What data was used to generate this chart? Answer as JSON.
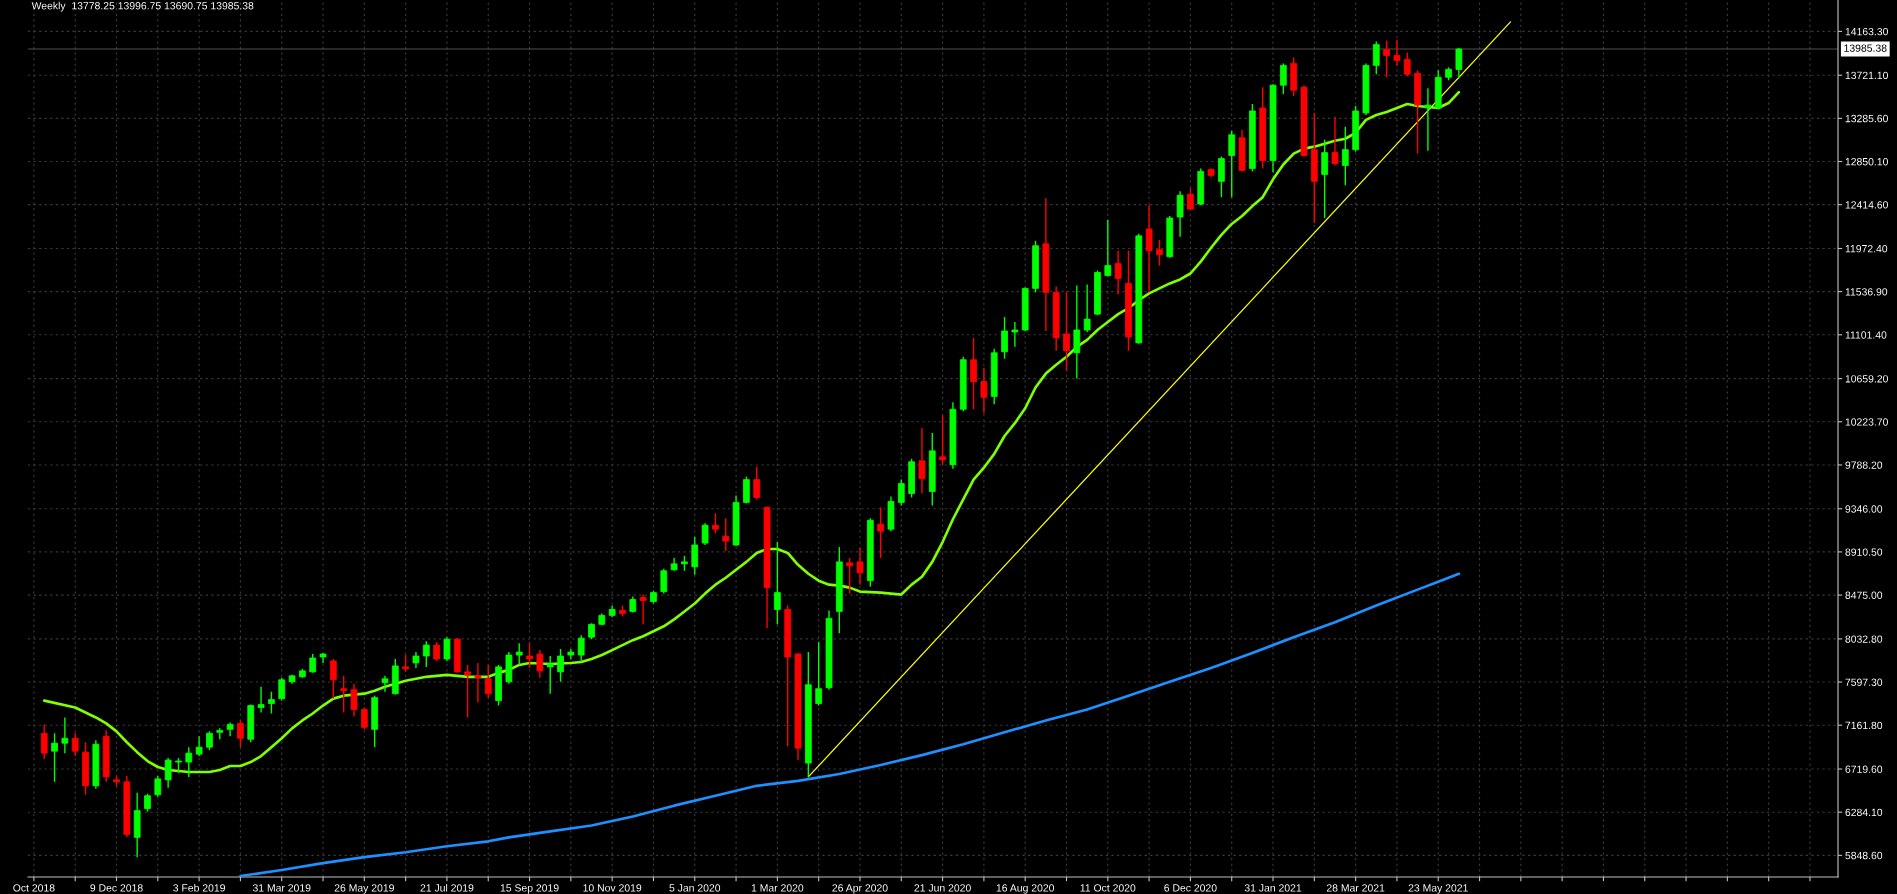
{
  "chart_data": {
    "type": "candlestick",
    "title": "Weekly  13778.25 13996.75 13690.75 13985.38",
    "x": [
      "2018-10-21",
      "2018-10-28",
      "2018-11-04",
      "2018-11-11",
      "2018-11-18",
      "2018-11-25",
      "2018-12-02",
      "2018-12-09",
      "2018-12-16",
      "2018-12-23",
      "2018-12-30",
      "2019-01-06",
      "2019-01-13",
      "2019-01-20",
      "2019-01-27",
      "2019-02-03",
      "2019-02-10",
      "2019-02-17",
      "2019-02-24",
      "2019-03-03",
      "2019-03-10",
      "2019-03-17",
      "2019-03-24",
      "2019-03-31",
      "2019-04-07",
      "2019-04-14",
      "2019-04-21",
      "2019-04-28",
      "2019-05-05",
      "2019-05-12",
      "2019-05-19",
      "2019-05-26",
      "2019-06-02",
      "2019-06-09",
      "2019-06-16",
      "2019-06-23",
      "2019-06-30",
      "2019-07-07",
      "2019-07-14",
      "2019-07-21",
      "2019-07-28",
      "2019-08-04",
      "2019-08-11",
      "2019-08-18",
      "2019-08-25",
      "2019-09-01",
      "2019-09-08",
      "2019-09-15",
      "2019-09-22",
      "2019-09-29",
      "2019-10-06",
      "2019-10-13",
      "2019-10-20",
      "2019-10-27",
      "2019-11-03",
      "2019-11-10",
      "2019-11-17",
      "2019-11-24",
      "2019-12-01",
      "2019-12-08",
      "2019-12-15",
      "2019-12-22",
      "2019-12-29",
      "2020-01-05",
      "2020-01-12",
      "2020-01-19",
      "2020-01-26",
      "2020-02-02",
      "2020-02-09",
      "2020-02-16",
      "2020-02-23",
      "2020-03-01",
      "2020-03-08",
      "2020-03-15",
      "2020-03-22",
      "2020-03-29",
      "2020-04-05",
      "2020-04-12",
      "2020-04-19",
      "2020-04-26",
      "2020-05-03",
      "2020-05-10",
      "2020-05-17",
      "2020-05-24",
      "2020-05-31",
      "2020-06-07",
      "2020-06-14",
      "2020-06-21",
      "2020-06-28",
      "2020-07-05",
      "2020-07-12",
      "2020-07-19",
      "2020-07-26",
      "2020-08-02",
      "2020-08-09",
      "2020-08-16",
      "2020-08-23",
      "2020-08-30",
      "2020-09-06",
      "2020-09-13",
      "2020-09-20",
      "2020-09-27",
      "2020-10-04",
      "2020-10-11",
      "2020-10-18",
      "2020-10-25",
      "2020-11-01",
      "2020-11-08",
      "2020-11-15",
      "2020-11-22",
      "2020-11-29",
      "2020-12-06",
      "2020-12-13",
      "2020-12-20",
      "2020-12-27",
      "2021-01-03",
      "2021-01-10",
      "2021-01-17",
      "2021-01-24",
      "2021-01-31",
      "2021-02-07",
      "2021-02-14",
      "2021-02-21",
      "2021-02-28",
      "2021-03-07",
      "2021-03-14",
      "2021-03-21",
      "2021-03-28",
      "2021-04-04",
      "2021-04-11",
      "2021-04-18",
      "2021-04-25",
      "2021-05-02",
      "2021-05-09",
      "2021-05-16",
      "2021-05-23",
      "2021-05-30",
      "2021-06-06"
    ],
    "ohlc": [
      [
        7080,
        7170,
        6820,
        6880
      ],
      [
        6900,
        7080,
        6590,
        6980
      ],
      [
        6980,
        7240,
        6880,
        7030
      ],
      [
        7030,
        7080,
        6850,
        6900
      ],
      [
        6890,
        6990,
        6460,
        6550
      ],
      [
        6550,
        7010,
        6520,
        6970
      ],
      [
        7050,
        7110,
        6590,
        6640
      ],
      [
        6610,
        6650,
        6550,
        6590
      ],
      [
        6590,
        6650,
        6030,
        6060
      ],
      [
        6030,
        6480,
        5830,
        6300
      ],
      [
        6320,
        6470,
        6290,
        6450
      ],
      [
        6460,
        6650,
        6440,
        6620
      ],
      [
        6610,
        6830,
        6530,
        6810
      ],
      [
        6790,
        6830,
        6680,
        6800
      ],
      [
        6790,
        6940,
        6640,
        6880
      ],
      [
        6870,
        7050,
        6850,
        6940
      ],
      [
        6940,
        7100,
        6910,
        7080
      ],
      [
        7090,
        7130,
        7020,
        7110
      ],
      [
        7120,
        7190,
        7050,
        7170
      ],
      [
        7180,
        7210,
        6940,
        7030
      ],
      [
        7020,
        7370,
        6990,
        7360
      ],
      [
        7340,
        7550,
        7290,
        7370
      ],
      [
        7380,
        7500,
        7280,
        7420
      ],
      [
        7430,
        7640,
        7410,
        7620
      ],
      [
        7600,
        7670,
        7580,
        7660
      ],
      [
        7650,
        7730,
        7640,
        7710
      ],
      [
        7700,
        7880,
        7690,
        7840
      ],
      [
        7850,
        7890,
        7790,
        7880
      ],
      [
        7810,
        7830,
        7430,
        7620
      ],
      [
        7530,
        7660,
        7290,
        7510
      ],
      [
        7520,
        7580,
        7250,
        7320
      ],
      [
        7320,
        7340,
        7120,
        7140
      ],
      [
        7120,
        7460,
        6940,
        7440
      ],
      [
        7590,
        7660,
        7500,
        7630
      ],
      [
        7480,
        7830,
        7470,
        7760
      ],
      [
        7750,
        7870,
        7700,
        7730
      ],
      [
        7790,
        7900,
        7740,
        7860
      ],
      [
        7860,
        8010,
        7750,
        7970
      ],
      [
        7970,
        8000,
        7810,
        7830
      ],
      [
        7830,
        8050,
        7810,
        8030
      ],
      [
        8030,
        8040,
        7690,
        7700
      ],
      [
        7700,
        7770,
        7240,
        7670
      ],
      [
        7660,
        7790,
        7390,
        7640
      ],
      [
        7630,
        7770,
        7440,
        7480
      ],
      [
        7410,
        7770,
        7360,
        7750
      ],
      [
        7600,
        7900,
        7580,
        7870
      ],
      [
        7870,
        7990,
        7770,
        7900
      ],
      [
        7860,
        7990,
        7740,
        7830
      ],
      [
        7880,
        7920,
        7640,
        7710
      ],
      [
        7750,
        7860,
        7480,
        7780
      ],
      [
        7700,
        7930,
        7600,
        7860
      ],
      [
        7870,
        7930,
        7830,
        7900
      ],
      [
        7870,
        8070,
        7800,
        8040
      ],
      [
        8050,
        8190,
        8030,
        8180
      ],
      [
        8180,
        8290,
        8170,
        8270
      ],
      [
        8270,
        8370,
        8250,
        8330
      ],
      [
        8320,
        8370,
        8260,
        8290
      ],
      [
        8310,
        8460,
        8300,
        8430
      ],
      [
        8450,
        8480,
        8180,
        8420
      ],
      [
        8410,
        8520,
        8390,
        8500
      ],
      [
        8510,
        8740,
        8490,
        8720
      ],
      [
        8730,
        8850,
        8720,
        8790
      ],
      [
        8790,
        8870,
        8720,
        8810
      ],
      [
        8760,
        9060,
        8680,
        8980
      ],
      [
        9000,
        9200,
        8980,
        9180
      ],
      [
        9180,
        9300,
        9100,
        9140
      ],
      [
        9070,
        9250,
        8920,
        9020
      ],
      [
        8980,
        9480,
        8970,
        9410
      ],
      [
        9410,
        9670,
        9400,
        9640
      ],
      [
        9640,
        9770,
        9440,
        9460
      ],
      [
        9360,
        9370,
        8140,
        8550
      ],
      [
        8330,
        9010,
        8180,
        8500
      ],
      [
        8330,
        8370,
        6950,
        7850
      ],
      [
        7880,
        7890,
        6810,
        6930
      ],
      [
        6780,
        7900,
        6640,
        7570
      ],
      [
        7380,
        8000,
        7360,
        7530
      ],
      [
        7540,
        8320,
        7520,
        8240
      ],
      [
        8310,
        8960,
        8090,
        8810
      ],
      [
        8800,
        8850,
        8490,
        8770
      ],
      [
        8810,
        8950,
        8580,
        8700
      ],
      [
        8620,
        9250,
        8560,
        9230
      ],
      [
        9190,
        9360,
        8850,
        9120
      ],
      [
        9140,
        9470,
        9120,
        9420
      ],
      [
        9410,
        9640,
        9380,
        9600
      ],
      [
        9500,
        9850,
        9460,
        9820
      ],
      [
        9830,
        10160,
        9500,
        9650
      ],
      [
        9520,
        10110,
        9380,
        9930
      ],
      [
        9870,
        10290,
        9790,
        9840
      ],
      [
        9790,
        10420,
        9750,
        10350
      ],
      [
        10350,
        10880,
        10330,
        10850
      ],
      [
        10850,
        11070,
        10350,
        10630
      ],
      [
        10630,
        10770,
        10310,
        10470
      ],
      [
        10480,
        10960,
        10400,
        10920
      ],
      [
        10930,
        11280,
        10860,
        11140
      ],
      [
        11130,
        11230,
        10980,
        11150
      ],
      [
        11150,
        11580,
        11140,
        11570
      ],
      [
        11570,
        12050,
        11530,
        12000
      ],
      [
        12020,
        12480,
        11140,
        11530
      ],
      [
        11530,
        11590,
        10940,
        11070
      ],
      [
        11110,
        11530,
        10740,
        10940
      ],
      [
        10920,
        11600,
        10660,
        11150
      ],
      [
        11150,
        11610,
        11130,
        11260
      ],
      [
        11310,
        11750,
        11300,
        11730
      ],
      [
        11700,
        12260,
        11690,
        11800
      ],
      [
        11820,
        11950,
        11510,
        11670
      ],
      [
        11620,
        11950,
        10940,
        11080
      ],
      [
        11020,
        12120,
        11010,
        12100
      ],
      [
        12170,
        12410,
        11530,
        11950
      ],
      [
        11960,
        12060,
        11800,
        11910
      ],
      [
        11890,
        12300,
        11880,
        12280
      ],
      [
        12290,
        12550,
        12090,
        12510
      ],
      [
        12520,
        12580,
        12360,
        12370
      ],
      [
        12420,
        12780,
        12410,
        12750
      ],
      [
        12770,
        12780,
        12690,
        12710
      ],
      [
        12650,
        12900,
        12490,
        12880
      ],
      [
        12910,
        13160,
        12490,
        13120
      ],
      [
        13090,
        13170,
        12750,
        12760
      ],
      [
        12780,
        13430,
        12750,
        13360
      ],
      [
        13390,
        13600,
        12780,
        12860
      ],
      [
        12860,
        13630,
        12740,
        13620
      ],
      [
        13620,
        13840,
        13530,
        13820
      ],
      [
        13840,
        13900,
        13510,
        13570
      ],
      [
        13600,
        13620,
        12900,
        12910
      ],
      [
        12970,
        13340,
        12230,
        12650
      ],
      [
        12720,
        13070,
        12280,
        12940
      ],
      [
        12940,
        13300,
        12810,
        12830
      ],
      [
        12810,
        13200,
        12610,
        12970
      ],
      [
        12970,
        13410,
        12950,
        13360
      ],
      [
        13340,
        13840,
        13320,
        13820
      ],
      [
        13820,
        14060,
        13730,
        14030
      ],
      [
        13980,
        14070,
        13700,
        13920
      ],
      [
        13920,
        14080,
        13820,
        13870
      ],
      [
        13880,
        13950,
        13710,
        13730
      ],
      [
        13740,
        13770,
        12930,
        13420
      ],
      [
        13390,
        13590,
        12960,
        13420
      ],
      [
        13390,
        13770,
        13380,
        13700
      ],
      [
        13700,
        13800,
        13670,
        13780
      ],
      [
        13778.25,
        13996.75,
        13690.75,
        13985.38
      ]
    ],
    "colors": [
      "#ff0000",
      "#00ff00",
      "#00ff00",
      "#ff0000",
      "#ff0000",
      "#00ff00",
      "#ff0000",
      "#ff0000",
      "#ff0000",
      "#00ff00",
      "#00ff00",
      "#00ff00",
      "#00ff00",
      "#00ff00",
      "#00ff00",
      "#00ff00",
      "#00ff00",
      "#00ff00",
      "#00ff00",
      "#ff0000",
      "#00ff00",
      "#00ff00",
      "#00ff00",
      "#00ff00",
      "#00ff00",
      "#00ff00",
      "#00ff00",
      "#00ff00",
      "#ff0000",
      "#ff0000",
      "#ff0000",
      "#ff0000",
      "#00ff00",
      "#00ff00",
      "#00ff00",
      "#ff0000",
      "#00ff00",
      "#00ff00",
      "#ff0000",
      "#00ff00",
      "#ff0000",
      "#ff0000",
      "#ff0000",
      "#ff0000",
      "#00ff00",
      "#00ff00",
      "#00ff00",
      "#ff0000",
      "#ff0000",
      "#00ff00",
      "#00ff00",
      "#00ff00",
      "#00ff00",
      "#00ff00",
      "#00ff00",
      "#00ff00",
      "#ff0000",
      "#00ff00",
      "#ff0000",
      "#00ff00",
      "#00ff00",
      "#00ff00",
      "#00ff00",
      "#00ff00",
      "#00ff00",
      "#ff0000",
      "#ff0000",
      "#00ff00",
      "#00ff00",
      "#ff0000",
      "#ff0000",
      "#00ff00",
      "#ff0000",
      "#ff0000",
      "#00ff00",
      "#00ff00",
      "#00ff00",
      "#00ff00",
      "#ff0000",
      "#ff0000",
      "#00ff00",
      "#ff0000",
      "#00ff00",
      "#00ff00",
      "#00ff00",
      "#ff0000",
      "#00ff00",
      "#ff0000",
      "#00ff00",
      "#00ff00",
      "#ff0000",
      "#ff0000",
      "#00ff00",
      "#00ff00",
      "#00ff00",
      "#00ff00",
      "#00ff00",
      "#ff0000",
      "#ff0000",
      "#ff0000",
      "#00ff00",
      "#00ff00",
      "#00ff00",
      "#00ff00",
      "#ff0000",
      "#ff0000",
      "#00ff00",
      "#ff0000",
      "#ff0000",
      "#00ff00",
      "#00ff00",
      "#ff0000",
      "#00ff00",
      "#ff0000",
      "#00ff00",
      "#00ff00",
      "#ff0000",
      "#00ff00",
      "#ff0000",
      "#00ff00",
      "#00ff00",
      "#ff0000",
      "#ff0000",
      "#ff0000",
      "#00ff00",
      "#ff0000",
      "#00ff00",
      "#00ff00",
      "#00ff00",
      "#00ff00",
      "#ff0000",
      "#ff0000",
      "#ff0000",
      "#ff0000",
      "#00ff00",
      "#00ff00",
      "#00ff00",
      "#00ff00"
    ],
    "series": [
      {
        "type": "line",
        "color": "#7fff00",
        "x": [
          "2018-10-21",
          "2018-11-11",
          "2018-11-25",
          "2018-12-02",
          "2018-12-09",
          "2018-12-16",
          "2018-12-23",
          "2018-12-30",
          "2019-01-06",
          "2019-01-13",
          "2019-01-27",
          "2019-02-10",
          "2019-02-17",
          "2019-02-24",
          "2019-03-03",
          "2019-03-10",
          "2019-03-17",
          "2019-03-24",
          "2019-03-31",
          "2019-04-07",
          "2019-04-14",
          "2019-04-21",
          "2019-04-28",
          "2019-05-05",
          "2019-05-12",
          "2019-05-19",
          "2019-05-26",
          "2019-06-02",
          "2019-06-09",
          "2019-06-16",
          "2019-06-23",
          "2019-06-30",
          "2019-07-07",
          "2019-07-14",
          "2019-07-21",
          "2019-07-28",
          "2019-08-04",
          "2019-08-11",
          "2019-08-18",
          "2019-08-25",
          "2019-09-01",
          "2019-09-08",
          "2019-09-15",
          "2019-09-29",
          "2019-10-13",
          "2019-10-20",
          "2019-10-27",
          "2019-11-03",
          "2019-11-10",
          "2019-11-17",
          "2019-11-24",
          "2019-12-01",
          "2019-12-08",
          "2019-12-15",
          "2019-12-22",
          "2019-12-29",
          "2020-01-05",
          "2020-01-12",
          "2020-01-19",
          "2020-01-26",
          "2020-02-02",
          "2020-02-09",
          "2020-02-16",
          "2020-02-23",
          "2020-03-01",
          "2020-03-08",
          "2020-03-15",
          "2020-03-22",
          "2020-03-29",
          "2020-04-05",
          "2020-04-12",
          "2020-04-19",
          "2020-04-26",
          "2020-05-10",
          "2020-05-24",
          "2020-05-31",
          "2020-06-07",
          "2020-06-14",
          "2020-06-21",
          "2020-06-28",
          "2020-07-05",
          "2020-07-12",
          "2020-07-19",
          "2020-07-26",
          "2020-08-02",
          "2020-08-09",
          "2020-08-16",
          "2020-08-23",
          "2020-08-30",
          "2020-09-06",
          "2020-09-13",
          "2020-09-20",
          "2020-09-27",
          "2020-10-04",
          "2020-10-11",
          "2020-10-18",
          "2020-10-25",
          "2020-11-01",
          "2020-11-08",
          "2020-11-15",
          "2020-11-22",
          "2020-11-29",
          "2020-12-06",
          "2020-12-13",
          "2020-12-20",
          "2020-12-27",
          "2021-01-03",
          "2021-01-10",
          "2021-01-17",
          "2021-01-24",
          "2021-01-31",
          "2021-02-07",
          "2021-02-14",
          "2021-02-21",
          "2021-02-28",
          "2021-03-07",
          "2021-03-14",
          "2021-03-21",
          "2021-03-28",
          "2021-04-04",
          "2021-04-11",
          "2021-04-18",
          "2021-04-25",
          "2021-05-02",
          "2021-05-09",
          "2021-05-16",
          "2021-05-23",
          "2021-05-30",
          "2021-06-06"
        ],
        "values": [
          7410,
          7340,
          7240,
          7180,
          7100,
          6990,
          6890,
          6800,
          6740,
          6710,
          6690,
          6690,
          6710,
          6750,
          6750,
          6790,
          6850,
          6940,
          7030,
          7130,
          7210,
          7280,
          7360,
          7430,
          7460,
          7470,
          7480,
          7510,
          7550,
          7580,
          7610,
          7630,
          7650,
          7660,
          7670,
          7660,
          7650,
          7650,
          7650,
          7690,
          7720,
          7770,
          7790,
          7780,
          7790,
          7800,
          7830,
          7870,
          7920,
          7970,
          8020,
          8060,
          8110,
          8160,
          8230,
          8310,
          8390,
          8490,
          8580,
          8650,
          8730,
          8810,
          8900,
          8940,
          8940,
          8900,
          8780,
          8690,
          8620,
          8580,
          8570,
          8550,
          8510,
          8500,
          8480,
          8580,
          8660,
          8810,
          9010,
          9240,
          9440,
          9640,
          9760,
          9900,
          10080,
          10210,
          10360,
          10570,
          10710,
          10800,
          10880,
          10980,
          11050,
          11150,
          11230,
          11310,
          11370,
          11450,
          11520,
          11570,
          11620,
          11660,
          11720,
          11840,
          11980,
          12110,
          12220,
          12300,
          12400,
          12490,
          12670,
          12820,
          12930,
          12980,
          13000,
          13030,
          13060,
          13080,
          13140,
          13270,
          13320,
          13350,
          13390,
          13430,
          13410,
          13400,
          13390,
          13440,
          13550
        ]
      },
      {
        "type": "line",
        "color": "#1e90ff",
        "x": [
          "2019-03-03",
          "2019-03-31",
          "2019-04-28",
          "2019-05-26",
          "2019-06-23",
          "2019-07-21",
          "2019-08-18",
          "2019-09-01",
          "2019-09-29",
          "2019-10-27",
          "2019-11-24",
          "2019-12-22",
          "2020-01-19",
          "2020-02-16",
          "2020-03-15",
          "2020-04-12",
          "2020-05-10",
          "2020-06-07",
          "2020-07-05",
          "2020-08-02",
          "2020-08-30",
          "2020-09-27",
          "2020-10-25",
          "2020-11-22",
          "2020-12-20",
          "2021-01-17",
          "2021-02-14",
          "2021-03-14",
          "2021-04-11",
          "2021-05-09",
          "2021-05-23",
          "2021-06-06"
        ],
        "values": [
          5640,
          5700,
          5770,
          5830,
          5880,
          5940,
          5990,
          6030,
          6090,
          6150,
          6240,
          6350,
          6450,
          6550,
          6600,
          6670,
          6760,
          6860,
          6970,
          7090,
          7210,
          7320,
          7460,
          7600,
          7740,
          7890,
          8050,
          8200,
          8370,
          8530,
          8610,
          8690
        ]
      },
      {
        "type": "line",
        "color": "#ffff00",
        "x": [
          "2020-03-22",
          "2021-07-11"
        ],
        "values": [
          6640,
          14260
        ]
      }
    ],
    "ref_lines": [
      {
        "axis": "y",
        "value": 13985.38,
        "label": "13985.38",
        "color": "#505050"
      }
    ],
    "ylim": [
      5630,
      14480
    ],
    "yticks": [
      {
        "value": 14163.3,
        "label": "14163.30"
      },
      {
        "value": 13721.1,
        "label": "13721.10"
      },
      {
        "value": 13285.6,
        "label": "13285.60"
      },
      {
        "value": 12850.1,
        "label": "12850.10"
      },
      {
        "value": 12414.6,
        "label": "12414.60"
      },
      {
        "value": 11972.4,
        "label": "11972.40"
      },
      {
        "value": 11536.9,
        "label": "11536.90"
      },
      {
        "value": 11101.4,
        "label": "11101.40"
      },
      {
        "value": 10659.2,
        "label": "10659.20"
      },
      {
        "value": 10223.7,
        "label": "10223.70"
      },
      {
        "value": 9788.2,
        "label": "9788.20"
      },
      {
        "value": 9346.0,
        "label": "9346.00"
      },
      {
        "value": 8910.5,
        "label": "8910.50"
      },
      {
        "value": 8475.0,
        "label": "8475.00"
      },
      {
        "value": 8032.8,
        "label": "8032.80"
      },
      {
        "value": 7597.3,
        "label": "7597.30"
      },
      {
        "value": 7161.8,
        "label": "7161.80"
      },
      {
        "value": 6719.6,
        "label": "6719.60"
      },
      {
        "value": 6284.1,
        "label": "6284.10"
      },
      {
        "value": 5848.6,
        "label": "5848.60"
      }
    ],
    "xlim": [
      "2018-10-10",
      "2022-02-18"
    ],
    "xticks": [
      {
        "value": "2018-10-14",
        "label": "Oct 2018"
      },
      {
        "value": "2018-11-11",
        "label": null
      },
      {
        "value": "2018-12-09",
        "label": "9 Dec 2018"
      },
      {
        "value": "2019-01-06",
        "label": null
      },
      {
        "value": "2019-02-03",
        "label": "3 Feb 2019"
      },
      {
        "value": "2019-03-03",
        "label": null
      },
      {
        "value": "2019-03-31",
        "label": "31 Mar 2019"
      },
      {
        "value": "2019-04-28",
        "label": null
      },
      {
        "value": "2019-05-26",
        "label": "26 May 2019"
      },
      {
        "value": "2019-06-23",
        "label": null
      },
      {
        "value": "2019-07-21",
        "label": "21 Jul 2019"
      },
      {
        "value": "2019-08-18",
        "label": null
      },
      {
        "value": "2019-09-15",
        "label": "15 Sep 2019"
      },
      {
        "value": "2019-10-13",
        "label": null
      },
      {
        "value": "2019-11-10",
        "label": "10 Nov 2019"
      },
      {
        "value": "2019-12-08",
        "label": null
      },
      {
        "value": "2020-01-05",
        "label": "5 Jan 2020"
      },
      {
        "value": "2020-02-02",
        "label": null
      },
      {
        "value": "2020-03-01",
        "label": "1 Mar 2020"
      },
      {
        "value": "2020-03-29",
        "label": null
      },
      {
        "value": "2020-04-26",
        "label": "26 Apr 2020"
      },
      {
        "value": "2020-05-24",
        "label": null
      },
      {
        "value": "2020-06-21",
        "label": "21 Jun 2020"
      },
      {
        "value": "2020-07-19",
        "label": null
      },
      {
        "value": "2020-08-16",
        "label": "16 Aug 2020"
      },
      {
        "value": "2020-09-13",
        "label": null
      },
      {
        "value": "2020-10-11",
        "label": "11 Oct 2020"
      },
      {
        "value": "2020-11-08",
        "label": null
      },
      {
        "value": "2020-12-06",
        "label": "6 Dec 2020"
      },
      {
        "value": "2021-01-03",
        "label": null
      },
      {
        "value": "2021-01-31",
        "label": "31 Jan 2021"
      },
      {
        "value": "2021-02-28",
        "label": null
      },
      {
        "value": "2021-03-28",
        "label": "28 Mar 2021"
      },
      {
        "value": "2021-04-25",
        "label": null
      },
      {
        "value": "2021-05-23",
        "label": "23 May 2021"
      },
      {
        "value": "2021-06-20",
        "label": null
      },
      {
        "value": "2021-07-18",
        "label": null
      },
      {
        "value": "2021-08-15",
        "label": null
      },
      {
        "value": "2021-09-12",
        "label": null
      },
      {
        "value": "2021-10-10",
        "label": null
      },
      {
        "value": "2021-11-07",
        "label": null
      },
      {
        "value": "2021-12-05",
        "label": null
      },
      {
        "value": "2022-01-02",
        "label": null
      },
      {
        "value": "2022-01-30",
        "label": null
      }
    ],
    "grid": true
  }
}
